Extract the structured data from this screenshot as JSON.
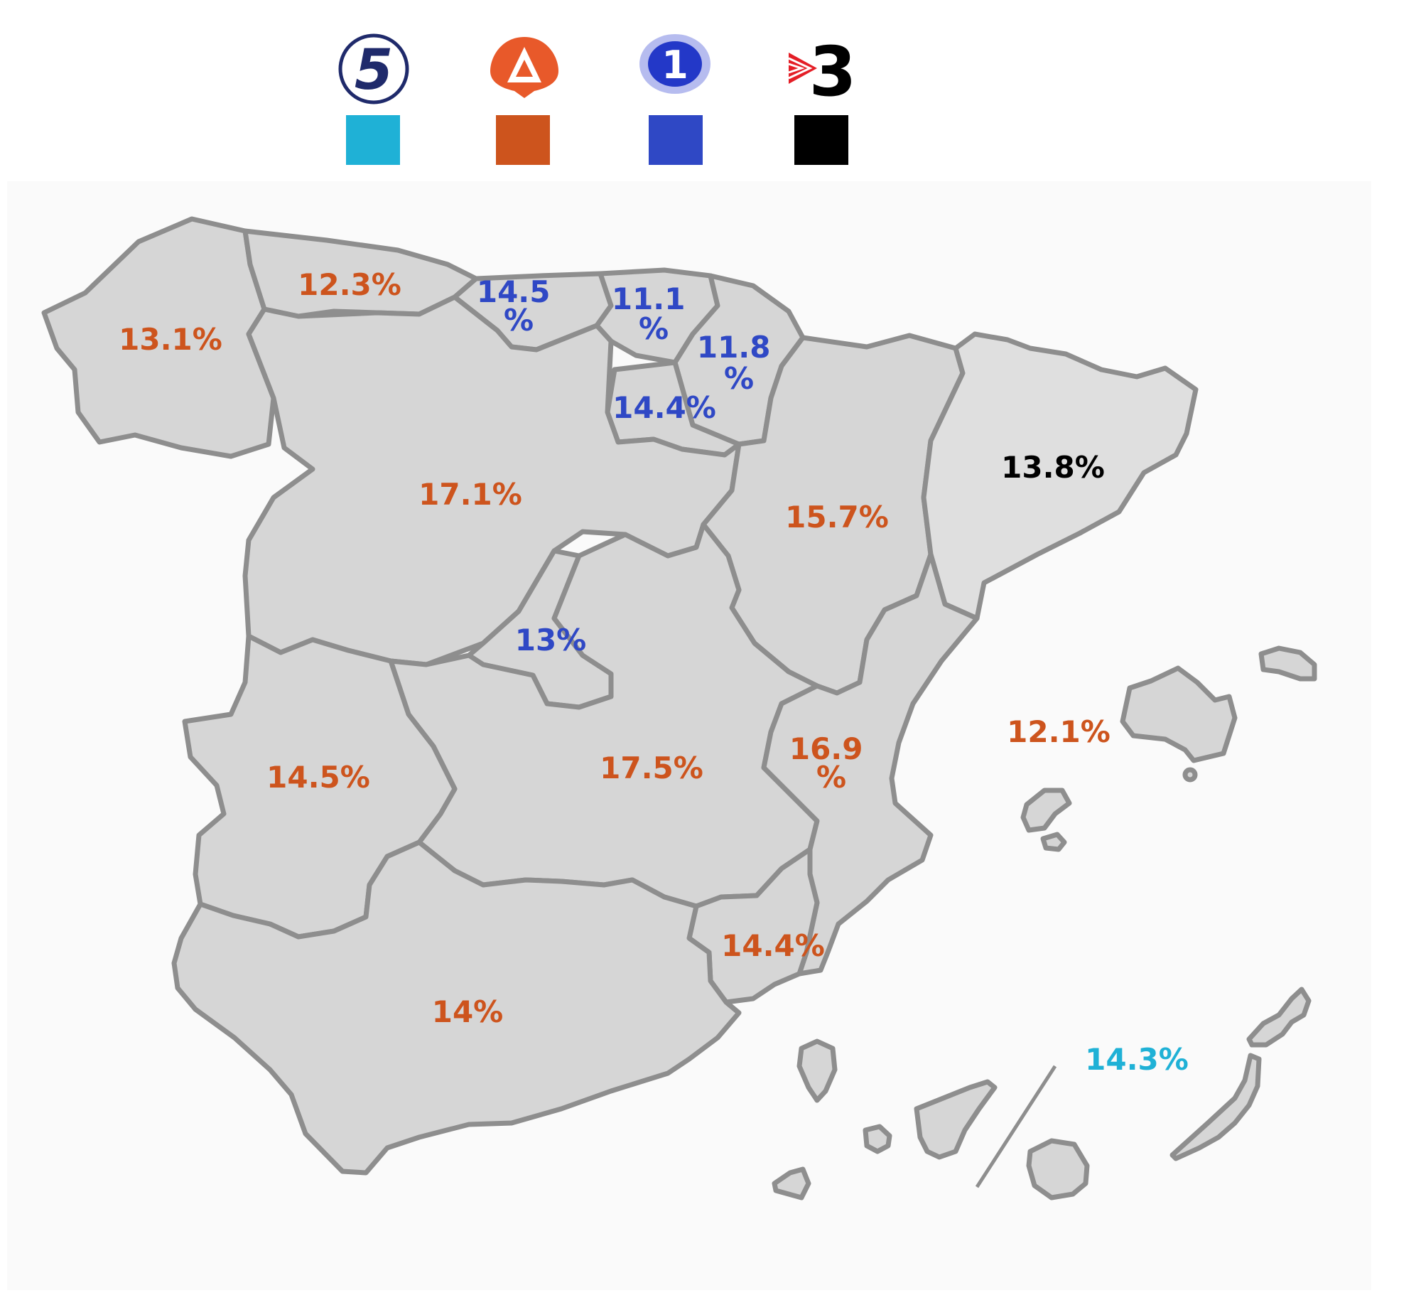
{
  "colors": {
    "telecinco": "#1fb1d6",
    "antena3": "#cd541d",
    "la1": "#2f48c5",
    "tv3": "#000000",
    "land": "#d6d6d6",
    "land_light": "#e0e0e0",
    "border": "#8e8e8e"
  },
  "legend": [
    {
      "id": "telecinco",
      "icon": "telecinco-5-logo",
      "logo_text": "5",
      "color": "#1fb1d6"
    },
    {
      "id": "antena3",
      "icon": "antena3-a-logo",
      "logo_text": "A",
      "color": "#cd541d"
    },
    {
      "id": "la1",
      "icon": "la1-blue-one-logo",
      "logo_text": "1",
      "color": "#2f48c5"
    },
    {
      "id": "tv3",
      "icon": "tv3-logo",
      "logo_text": "3",
      "color": "#000000"
    }
  ],
  "regions": [
    {
      "id": "galicia",
      "leader": "antena3",
      "lines": [
        "13.1%"
      ]
    },
    {
      "id": "asturias",
      "leader": "antena3",
      "lines": [
        "12.3%"
      ]
    },
    {
      "id": "cantabria",
      "leader": "la1",
      "lines": [
        "14.5",
        "%"
      ]
    },
    {
      "id": "pais-vasco",
      "leader": "la1",
      "lines": [
        "11.1",
        "%"
      ]
    },
    {
      "id": "navarra",
      "leader": "la1",
      "lines": [
        "11.8",
        "%"
      ]
    },
    {
      "id": "la-rioja",
      "leader": "la1",
      "lines": [
        "14.4%"
      ]
    },
    {
      "id": "castilla-leon",
      "leader": "antena3",
      "lines": [
        "17.1%"
      ]
    },
    {
      "id": "aragon",
      "leader": "antena3",
      "lines": [
        "15.7%"
      ]
    },
    {
      "id": "cataluna",
      "leader": "tv3",
      "lines": [
        "13.8%"
      ]
    },
    {
      "id": "madrid",
      "leader": "la1",
      "lines": [
        "13%"
      ]
    },
    {
      "id": "extremadura",
      "leader": "antena3",
      "lines": [
        "14.5%"
      ]
    },
    {
      "id": "castilla-la-mancha",
      "leader": "antena3",
      "lines": [
        "17.5%"
      ]
    },
    {
      "id": "valencia",
      "leader": "antena3",
      "lines": [
        "16.9",
        "%"
      ]
    },
    {
      "id": "baleares",
      "leader": "antena3",
      "lines": [
        "12.1%"
      ]
    },
    {
      "id": "murcia",
      "leader": "antena3",
      "lines": [
        "14.4%"
      ]
    },
    {
      "id": "andalucia",
      "leader": "antena3",
      "lines": [
        "14%"
      ]
    },
    {
      "id": "canarias",
      "leader": "telecinco",
      "lines": [
        "14.3%"
      ]
    }
  ]
}
